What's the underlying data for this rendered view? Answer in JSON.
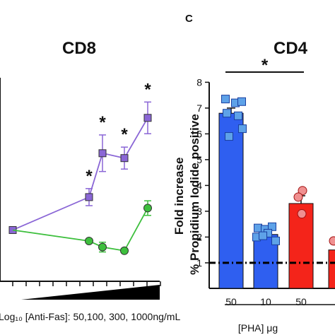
{
  "panel_label": "C",
  "chart_data": [
    {
      "type": "line",
      "title": "CD8",
      "xlabel": "Log₁₀ [Anti-Fas]: 50,100, 300, 1000ng/mL",
      "ylabel": "",
      "series": [
        {
          "color": "#8a66d6",
          "points": [
            {
              "x": 0,
              "y": 1.0,
              "err": 0
            },
            {
              "x": 50,
              "y": 2.35,
              "err": 0.35
            },
            {
              "x": 100,
              "y": 4.15,
              "err": 0.75
            },
            {
              "x": 300,
              "y": 3.95,
              "err": 0.45
            },
            {
              "x": 1000,
              "y": 5.6,
              "err": 0.65
            }
          ]
        },
        {
          "color": "#3dbf3d",
          "points": [
            {
              "x": 0,
              "y": 1.0,
              "err": 0
            },
            {
              "x": 50,
              "y": 0.55,
              "err": 0.08
            },
            {
              "x": 100,
              "y": 0.3,
              "err": 0.2
            },
            {
              "x": 300,
              "y": 0.15,
              "err": 0.08
            },
            {
              "x": 1000,
              "y": 1.9,
              "err": 0.3
            }
          ]
        }
      ],
      "annotations": [
        {
          "label": "*",
          "x": 50
        },
        {
          "label": "*",
          "x": 100
        },
        {
          "label": "*",
          "x": 300
        },
        {
          "label": "*",
          "x": 1000
        }
      ]
    },
    {
      "type": "bar",
      "title": "CD4",
      "ylabel": "Fold increase\n% Propidium Iodide positive",
      "xlabel": "[PHA] μg",
      "categories": [
        "50",
        "10",
        "50"
      ],
      "values": [
        6.8,
        2.1,
        3.3
      ],
      "colors": [
        "#2f5ff0",
        "#2f5ff0",
        "#f4241a"
      ],
      "point_colors": [
        "#5ea2e8",
        "#5ea2e8",
        "#f09090"
      ],
      "errors": [
        0.2,
        0.12,
        0.3
      ],
      "points": [
        [
          7.35,
          7.2,
          7.25,
          6.8,
          6.7,
          6.2,
          5.9
        ],
        [
          2.35,
          2.3,
          2.4,
          2.0,
          2.15,
          1.85,
          2.05
        ],
        [
          3.8,
          3.55,
          2.9
        ]
      ],
      "partial_bar": {
        "value": 1.5,
        "color": "#f4241a"
      },
      "yticks": [
        1,
        2,
        3,
        4,
        5,
        6,
        7,
        8
      ],
      "ylim": [
        0,
        8
      ],
      "reference_line": 1,
      "significance": {
        "label": "*",
        "between": [
          0,
          2
        ]
      }
    }
  ]
}
